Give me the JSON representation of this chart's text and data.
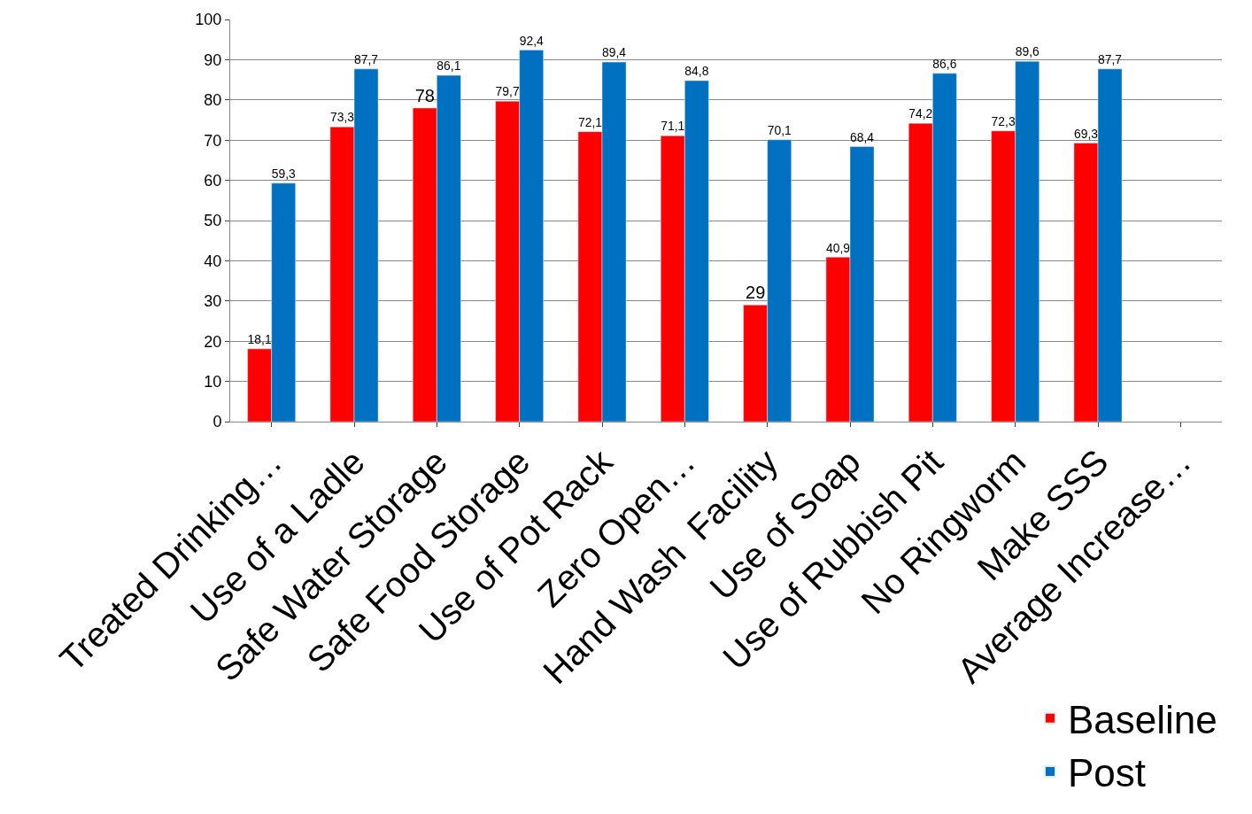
{
  "chart_data": {
    "type": "bar",
    "categories": [
      "Treated Drinking…",
      "Use of a Ladle",
      "Safe Water Storage",
      "Safe Food Storage",
      "Use of Pot Rack",
      "Zero Open…",
      "Hand Wash  Facility",
      "Use of Soap",
      "Use of Rubbish Pit",
      "No Ringworm",
      "Make SSS",
      "Average Increase…"
    ],
    "series": [
      {
        "name": "Baseline",
        "color": "#ff0000",
        "values": [
          18.1,
          73.3,
          78,
          79.7,
          72.1,
          71.1,
          29,
          40.9,
          74.2,
          72.3,
          69.3,
          null
        ],
        "value_labels": [
          "18,1",
          "73,3",
          "78",
          "79,7",
          "72,1",
          "71,1",
          "29",
          "40,9",
          "74,2",
          "72,3",
          "69,3",
          null
        ]
      },
      {
        "name": "Post",
        "color": "#0070c0",
        "values": [
          59.3,
          87.7,
          86.1,
          92.4,
          89.4,
          84.8,
          70.1,
          68.4,
          86.6,
          89.6,
          87.7,
          null
        ],
        "value_labels": [
          "59,3",
          "87,7",
          "86,1",
          "92,4",
          "89,4",
          "84,8",
          "70,1",
          "68,4",
          "86,6",
          "89,6",
          "87,7",
          null
        ]
      }
    ],
    "ylim": [
      0,
      100
    ],
    "yticks": [
      0,
      10,
      20,
      30,
      40,
      50,
      60,
      70,
      80,
      90,
      100
    ],
    "grid": "y",
    "legend": "bottom right"
  }
}
